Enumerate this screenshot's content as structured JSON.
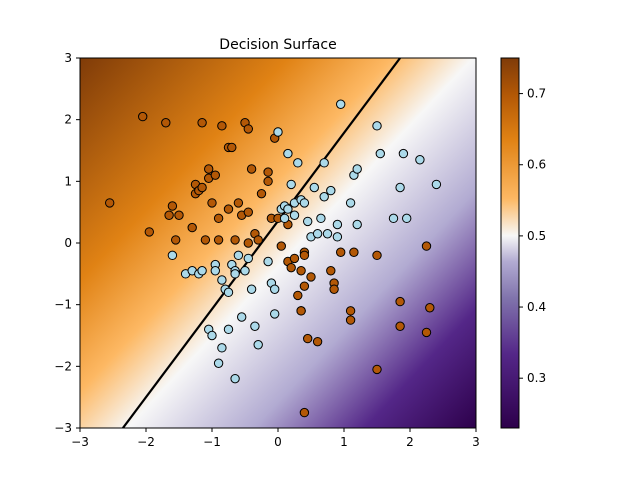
{
  "chart_data": {
    "type": "scatter",
    "title": "Decision Surface",
    "xlabel": "",
    "ylabel": "",
    "xlim": [
      -3,
      3
    ],
    "ylim": [
      -3,
      3
    ],
    "xticks": [
      "−3",
      "−2",
      "−1",
      "0",
      "1",
      "2",
      "3"
    ],
    "yticks": [
      "−3",
      "−2",
      "−1",
      "0",
      "1",
      "2",
      "3"
    ],
    "grid": false,
    "background": {
      "kind": "probability-surface",
      "colormap": "PuOr",
      "vmin": 0.23,
      "vmax": 0.75,
      "colors": {
        "high": "#7f3b08",
        "mid": "#f7f7f7",
        "low": "#2d004b"
      }
    },
    "colorbar": {
      "ticks": [
        "0.3",
        "0.4",
        "0.5",
        "0.6",
        "0.7"
      ],
      "tick_values": [
        0.3,
        0.4,
        0.5,
        0.6,
        0.7
      ]
    },
    "decision_boundary": {
      "color": "#000000",
      "points": [
        [
          -2.35,
          -3.0
        ],
        [
          1.85,
          3.0
        ]
      ]
    },
    "series": [
      {
        "color": "#b35806",
        "points": [
          [
            -2.55,
            0.65
          ],
          [
            -2.05,
            2.05
          ],
          [
            -1.95,
            0.18
          ],
          [
            -1.7,
            1.95
          ],
          [
            -1.65,
            0.45
          ],
          [
            -1.6,
            0.6
          ],
          [
            -1.55,
            0.05
          ],
          [
            -1.5,
            0.45
          ],
          [
            -1.3,
            0.25
          ],
          [
            -1.25,
            0.95
          ],
          [
            -1.25,
            0.8
          ],
          [
            -1.2,
            0.85
          ],
          [
            -1.15,
            1.95
          ],
          [
            -1.15,
            0.9
          ],
          [
            -1.1,
            0.05
          ],
          [
            -1.05,
            1.2
          ],
          [
            -1.05,
            1.05
          ],
          [
            -1.0,
            0.65
          ],
          [
            -0.95,
            1.1
          ],
          [
            -0.9,
            0.4
          ],
          [
            -0.9,
            0.05
          ],
          [
            -0.85,
            1.9
          ],
          [
            -0.75,
            1.55
          ],
          [
            -0.75,
            0.55
          ],
          [
            -0.7,
            1.55
          ],
          [
            -0.65,
            0.05
          ],
          [
            -0.6,
            0.65
          ],
          [
            -0.55,
            0.45
          ],
          [
            -0.5,
            1.95
          ],
          [
            -0.45,
            1.85
          ],
          [
            -0.45,
            0.5
          ],
          [
            -0.45,
            0.0
          ],
          [
            -0.4,
            1.2
          ],
          [
            -0.35,
            0.15
          ],
          [
            -0.3,
            0.05
          ],
          [
            -0.25,
            0.8
          ],
          [
            -0.15,
            1.15
          ],
          [
            -0.15,
            1.0
          ],
          [
            -0.1,
            0.4
          ],
          [
            -0.05,
            1.7
          ],
          [
            0.0,
            0.4
          ],
          [
            0.05,
            -0.05
          ],
          [
            0.15,
            0.3
          ],
          [
            0.15,
            -0.3
          ],
          [
            0.2,
            -0.4
          ],
          [
            0.25,
            -0.25
          ],
          [
            0.3,
            -0.85
          ],
          [
            0.35,
            -0.45
          ],
          [
            0.35,
            -1.1
          ],
          [
            0.4,
            -0.15
          ],
          [
            0.4,
            -0.2
          ],
          [
            0.4,
            -0.7
          ],
          [
            0.45,
            -1.55
          ],
          [
            0.5,
            -0.55
          ],
          [
            0.6,
            -1.6
          ],
          [
            0.8,
            -0.45
          ],
          [
            0.85,
            -0.65
          ],
          [
            0.85,
            -0.75
          ],
          [
            0.95,
            -0.15
          ],
          [
            1.1,
            -1.1
          ],
          [
            1.1,
            -1.25
          ],
          [
            1.15,
            -0.15
          ],
          [
            1.5,
            -0.2
          ],
          [
            1.5,
            -2.05
          ],
          [
            1.85,
            -0.95
          ],
          [
            1.85,
            -1.35
          ],
          [
            2.25,
            -0.05
          ],
          [
            2.25,
            -1.45
          ],
          [
            2.3,
            -1.05
          ],
          [
            0.4,
            -2.75
          ],
          [
            0.35,
            -1.1
          ]
        ]
      },
      {
        "color": "#abd9e9",
        "points": [
          [
            -1.6,
            -0.2
          ],
          [
            -1.4,
            -0.5
          ],
          [
            -1.3,
            -0.45
          ],
          [
            -1.2,
            -0.5
          ],
          [
            -1.15,
            -0.45
          ],
          [
            -1.05,
            -1.4
          ],
          [
            -1.0,
            -1.5
          ],
          [
            -0.95,
            -0.35
          ],
          [
            -0.95,
            -0.45
          ],
          [
            -0.9,
            -1.95
          ],
          [
            -0.85,
            -0.6
          ],
          [
            -0.85,
            -1.7
          ],
          [
            -0.8,
            -0.75
          ],
          [
            -0.75,
            -0.8
          ],
          [
            -0.75,
            -1.4
          ],
          [
            -0.7,
            -0.35
          ],
          [
            -0.65,
            -0.45
          ],
          [
            -0.65,
            -0.5
          ],
          [
            -0.65,
            -2.2
          ],
          [
            -0.6,
            -0.2
          ],
          [
            -0.55,
            -1.2
          ],
          [
            -0.5,
            -0.45
          ],
          [
            -0.45,
            -0.25
          ],
          [
            -0.4,
            -0.75
          ],
          [
            -0.35,
            -1.35
          ],
          [
            -0.3,
            -1.65
          ],
          [
            -0.15,
            -0.3
          ],
          [
            -0.1,
            -0.65
          ],
          [
            -0.05,
            -0.75
          ],
          [
            -0.05,
            -1.15
          ],
          [
            0.0,
            1.8
          ],
          [
            0.05,
            0.55
          ],
          [
            0.1,
            0.4
          ],
          [
            0.1,
            0.6
          ],
          [
            0.15,
            1.45
          ],
          [
            0.2,
            0.95
          ],
          [
            0.25,
            0.65
          ],
          [
            0.3,
            1.3
          ],
          [
            0.35,
            0.7
          ],
          [
            0.4,
            0.65
          ],
          [
            0.45,
            0.35
          ],
          [
            0.5,
            0.1
          ],
          [
            0.55,
            0.9
          ],
          [
            0.6,
            0.15
          ],
          [
            0.65,
            0.4
          ],
          [
            0.7,
            1.3
          ],
          [
            0.7,
            0.75
          ],
          [
            0.75,
            0.15
          ],
          [
            0.8,
            0.85
          ],
          [
            0.9,
            0.3
          ],
          [
            0.9,
            0.1
          ],
          [
            0.95,
            2.25
          ],
          [
            1.1,
            0.65
          ],
          [
            1.15,
            1.1
          ],
          [
            1.2,
            0.3
          ],
          [
            1.2,
            1.2
          ],
          [
            1.5,
            1.9
          ],
          [
            1.55,
            1.45
          ],
          [
            1.75,
            0.4
          ],
          [
            1.85,
            0.9
          ],
          [
            1.9,
            1.45
          ],
          [
            1.95,
            0.4
          ],
          [
            2.15,
            1.35
          ],
          [
            2.4,
            0.95
          ],
          [
            0.15,
            0.55
          ],
          [
            0.25,
            0.45
          ]
        ]
      }
    ]
  }
}
